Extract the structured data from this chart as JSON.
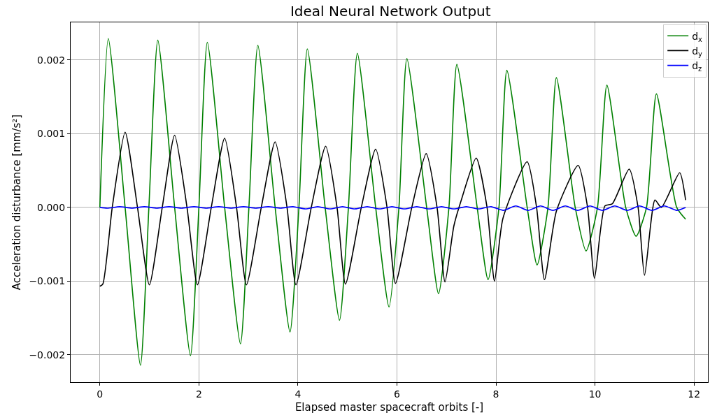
{
  "chart_data": {
    "type": "line",
    "title": "Ideal Neural Network Output",
    "xlabel": "Elapsed master spacecraft orbits [-]",
    "ylabel": "Acceleration disturbance [mm/s²]",
    "xlim": [
      -0.59,
      12.28
    ],
    "ylim": [
      -0.00237,
      0.00251
    ],
    "xticks": [
      0,
      2,
      4,
      6,
      8,
      10,
      12
    ],
    "yticks": [
      {
        "value": -0.002,
        "label": "−0.002"
      },
      {
        "value": -0.001,
        "label": "−0.001"
      },
      {
        "value": 0,
        "label": "0.000"
      },
      {
        "value": 0.001,
        "label": "0.001"
      },
      {
        "value": 0.002,
        "label": "0.002"
      }
    ],
    "grid": true,
    "legend": "top right",
    "marker": "none",
    "line_style": "solid",
    "series": [
      {
        "name": "d$_{x}$",
        "color": "#008000",
        "x": [
          0,
          0.17,
          0.51,
          0.82,
          0.99,
          1.17,
          1.51,
          1.83,
          2.0,
          2.17,
          2.52,
          2.84,
          3.01,
          3.19,
          3.54,
          3.84,
          4.02,
          4.19,
          4.55,
          4.84,
          5.02,
          5.2,
          5.57,
          5.84,
          6.04,
          6.2,
          6.6,
          6.84,
          7.05,
          7.21,
          7.62,
          7.84,
          8.06,
          8.22,
          8.63,
          8.83,
          9.05,
          9.22,
          9.6,
          9.82,
          10.05,
          10.24,
          10.62,
          10.83,
          11.04,
          11.24,
          11.65,
          11.83
        ],
        "values": [
          0,
          0.00229,
          0,
          -0.00214,
          0,
          0.00227,
          0,
          -0.00201,
          0,
          0.00224,
          0,
          -0.00185,
          0,
          0.0022,
          0,
          -0.00169,
          0,
          0.00215,
          0,
          -0.00153,
          0,
          0.00209,
          0,
          -0.00135,
          0,
          0.00202,
          0,
          -0.00117,
          0,
          0.00194,
          0,
          -0.00098,
          0,
          0.00186,
          0,
          -0.00078,
          0,
          0.00176,
          0,
          -0.00059,
          0,
          0.00166,
          0,
          -0.00039,
          0,
          0.00154,
          0,
          -0.00016
        ]
      },
      {
        "name": "d$_{y}$",
        "color": "#000000",
        "x": [
          0,
          0.06,
          0.25,
          0.51,
          0.76,
          1.0,
          1.26,
          1.51,
          1.76,
          1.97,
          2.25,
          2.52,
          2.76,
          2.96,
          3.26,
          3.54,
          3.78,
          3.96,
          4.27,
          4.56,
          4.79,
          4.96,
          5.28,
          5.57,
          5.8,
          5.97,
          6.3,
          6.59,
          6.81,
          6.97,
          7.15,
          7.3,
          7.6,
          7.82,
          7.97,
          8.14,
          8.63,
          8.82,
          8.98,
          9.22,
          9.66,
          9.85,
          9.99,
          10.2,
          10.35,
          10.69,
          10.87,
          11.0,
          11.21,
          11.34,
          11.71,
          11.83
        ],
        "values": [
          -0.00107,
          -0.00104,
          0,
          0.00102,
          0,
          -0.00105,
          0,
          0.00098,
          0,
          -0.00105,
          0,
          0.00094,
          0,
          -0.00105,
          0,
          0.00089,
          0,
          -0.00105,
          0,
          0.00083,
          0,
          -0.00104,
          0,
          0.00079,
          0,
          -0.00103,
          0,
          0.00073,
          0,
          -0.00101,
          -0.00025,
          0.0001,
          0.00067,
          0,
          -0.001,
          -0.00015,
          0.00062,
          0,
          -0.00098,
          -5e-05,
          0.00057,
          0,
          -0.00096,
          2e-05,
          5e-05,
          0.00052,
          0,
          -0.00092,
          0.0001,
          0.0,
          0.00047,
          0.0001
        ]
      },
      {
        "name": "d$_{z}$",
        "color": "#0000ff",
        "x": [
          0,
          0.15,
          0.4,
          0.65,
          0.9,
          1.15,
          1.4,
          1.65,
          1.9,
          2.15,
          2.4,
          2.65,
          2.9,
          3.15,
          3.4,
          3.65,
          3.9,
          4.15,
          4.4,
          4.65,
          4.9,
          5.15,
          5.4,
          5.65,
          5.9,
          6.15,
          6.4,
          6.65,
          6.9,
          7.15,
          7.4,
          7.65,
          7.9,
          8.15,
          8.4,
          8.65,
          8.9,
          9.15,
          9.4,
          9.65,
          9.9,
          10.15,
          10.4,
          10.65,
          10.9,
          11.15,
          11.4,
          11.65,
          11.83
        ],
        "values": [
          0,
          -1e-05,
          1e-05,
          -1e-05,
          1e-05,
          -1e-05,
          1e-05,
          -1e-05,
          1e-05,
          -1e-05,
          1e-05,
          -1e-05,
          1e-05,
          -1e-05,
          1e-05,
          -1e-05,
          1e-05,
          -2e-05,
          1e-05,
          -2e-05,
          1e-05,
          -2e-05,
          1e-05,
          -2e-05,
          1e-05,
          -2e-05,
          1e-05,
          -2e-05,
          1e-05,
          -2e-05,
          1e-05,
          -2e-05,
          1e-05,
          -4e-05,
          2e-05,
          -4e-05,
          2e-05,
          -4e-05,
          2e-05,
          -4e-05,
          2e-05,
          -4e-05,
          2e-05,
          -4e-05,
          2e-05,
          -4e-05,
          2e-05,
          -4e-05,
          0
        ]
      }
    ]
  }
}
